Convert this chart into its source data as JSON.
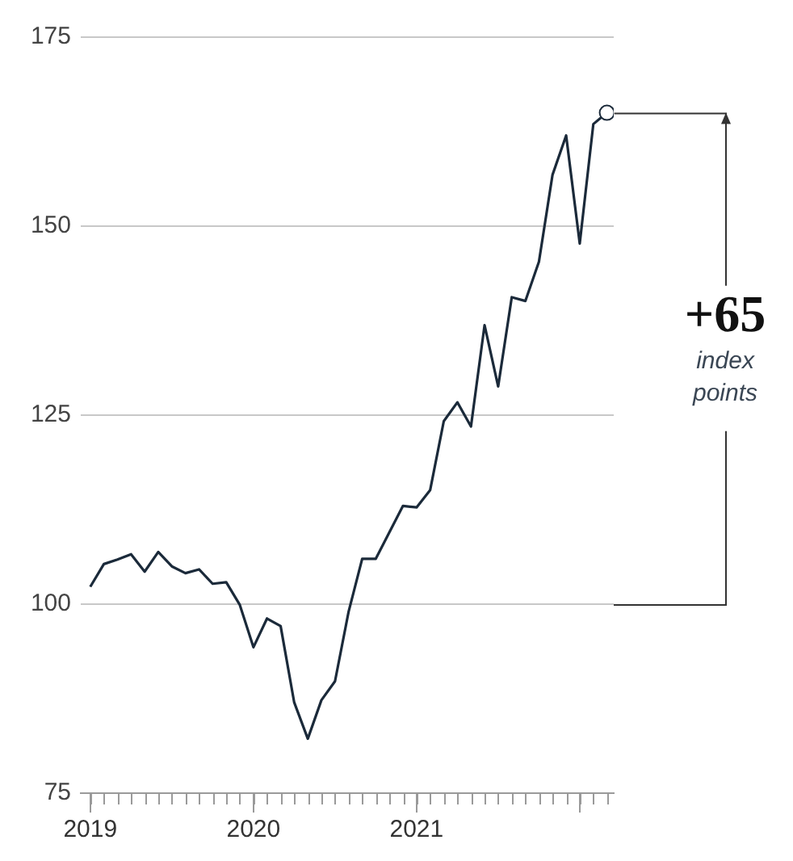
{
  "chart_data": {
    "type": "line",
    "x": [
      "2019-01",
      "2019-02",
      "2019-03",
      "2019-04",
      "2019-05",
      "2019-06",
      "2019-07",
      "2019-08",
      "2019-09",
      "2019-10",
      "2019-11",
      "2019-12",
      "2020-01",
      "2020-02",
      "2020-03",
      "2020-04",
      "2020-05",
      "2020-06",
      "2020-07",
      "2020-08",
      "2020-09",
      "2020-10",
      "2020-11",
      "2020-12",
      "2021-01",
      "2021-02",
      "2021-03",
      "2021-04",
      "2021-05",
      "2021-06",
      "2021-07",
      "2021-08",
      "2021-09",
      "2021-10",
      "2021-11",
      "2021-12",
      "2022-01",
      "2022-02",
      "2022-03"
    ],
    "series": [
      {
        "color": "#1b2a3a",
        "values": [
          102.3,
          105.3,
          105.9,
          106.6,
          104.3,
          106.9,
          105.0,
          104.1,
          104.6,
          102.7,
          102.9,
          99.9,
          94.3,
          98.1,
          97.1,
          87.0,
          82.2,
          87.3,
          89.8,
          99.0,
          106.0,
          106.0,
          109.5,
          113.0,
          112.8,
          115.1,
          124.2,
          126.7,
          123.5,
          136.9,
          128.8,
          140.6,
          140.1,
          145.3,
          156.8,
          162.0,
          147.7,
          163.5,
          165
        ]
      }
    ],
    "xlim": [
      "2018-12-10",
      "2022-03-16"
    ],
    "xticks": [
      {
        "value": "2019-01",
        "label": "2019"
      },
      {
        "value": "2020-01",
        "label": "2020"
      },
      {
        "value": "2021-01",
        "label": "2021"
      },
      {
        "value": "2022-01",
        "label": null
      }
    ],
    "ylim": [
      75,
      175
    ],
    "yticks": [
      75,
      100,
      125,
      150,
      175
    ],
    "grid": "y",
    "legend": false,
    "line_style": "solid",
    "annotations": [
      {
        "text": "+65",
        "x": "2022-03",
        "y": 165
      },
      "index points"
    ]
  }
}
